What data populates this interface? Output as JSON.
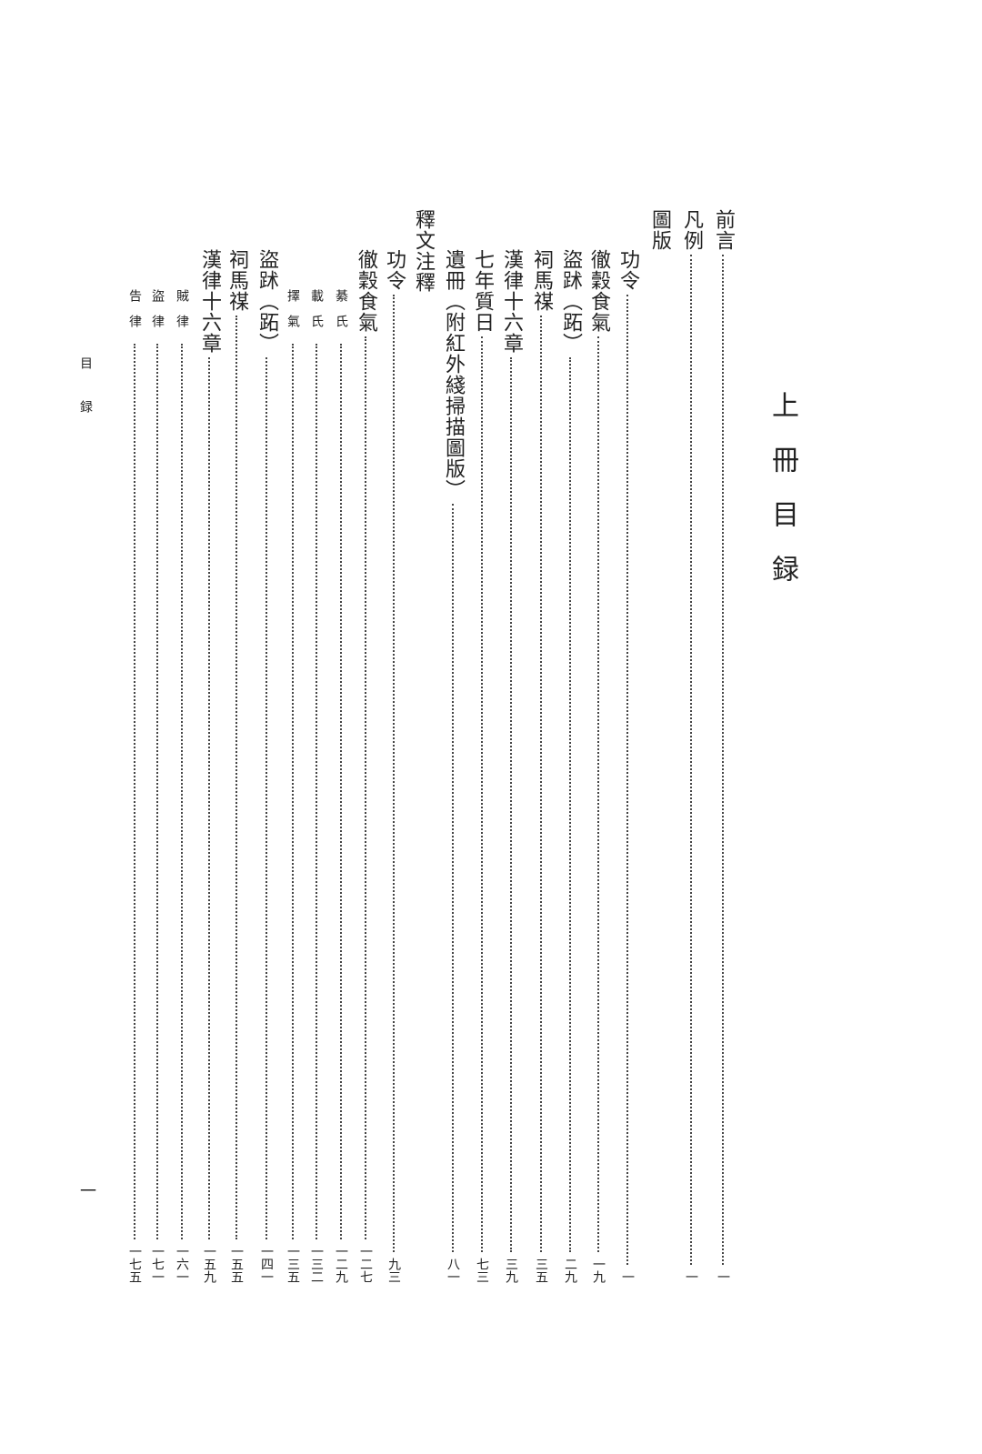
{
  "heading": "上冊目録",
  "running_head": "目録",
  "folio": "一",
  "entries": [
    {
      "title": "前言",
      "page": "一",
      "level": 1
    },
    {
      "title": "凡例",
      "page": "一",
      "level": 1
    },
    {
      "title": "圖版",
      "page": "",
      "level": 1
    },
    {
      "title": "功令",
      "page": "一",
      "level": 2
    },
    {
      "title": "徹穀食氣",
      "page": "一九",
      "level": 2
    },
    {
      "title": "盜䟣（跖）",
      "page": "二九",
      "level": 2
    },
    {
      "title": "祠馬禖",
      "page": "三五",
      "level": 2
    },
    {
      "title": "漢律十六章",
      "page": "三九",
      "level": 2
    },
    {
      "title": "七年質日",
      "page": "七三",
      "level": 2
    },
    {
      "title": "遺冊（附紅外綫掃描圖版）",
      "page": "八一",
      "level": 2
    },
    {
      "title": "釋文注釋",
      "page": "",
      "level": 1
    },
    {
      "title": "功令",
      "page": "九三",
      "level": 2
    },
    {
      "title": "徹穀食氣",
      "page": "一二七",
      "level": 2
    },
    {
      "title": "綦氏",
      "page": "一二九",
      "level": 3
    },
    {
      "title": "載氏",
      "page": "一三二",
      "level": 3
    },
    {
      "title": "擇氣",
      "page": "一三五",
      "level": 3
    },
    {
      "title": "盜䟣（跖）",
      "page": "一四一",
      "level": 2
    },
    {
      "title": "祠馬禖",
      "page": "一五五",
      "level": 2
    },
    {
      "title": "漢律十六章",
      "page": "一五九",
      "level": 2
    },
    {
      "title": "賊律",
      "page": "一六一",
      "level": 3
    },
    {
      "title": "盜律",
      "page": "一七一",
      "level": 3
    },
    {
      "title": "告律",
      "page": "一七五",
      "level": 3
    }
  ]
}
